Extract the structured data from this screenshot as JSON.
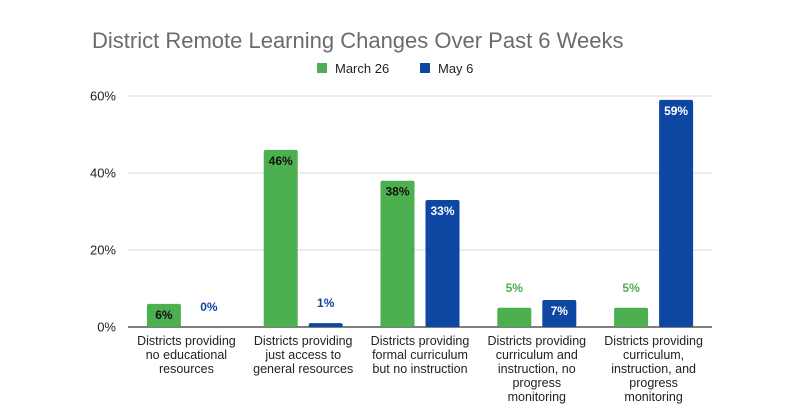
{
  "chart_data": {
    "type": "bar",
    "title": "District Remote Learning Changes Over Past 6 Weeks",
    "xlabel": "",
    "ylabel": "",
    "ylim": [
      0,
      60
    ],
    "yticks": [
      "0%",
      "20%",
      "40%",
      "60%"
    ],
    "ytick_values": [
      0,
      20,
      40,
      60
    ],
    "grid": true,
    "legend_position": "top",
    "categories": [
      [
        "Districts providing",
        "no educational",
        "resources"
      ],
      [
        "Districts providing",
        "just access to",
        "general resources"
      ],
      [
        "Districts providing",
        "formal curriculum",
        "but no instruction"
      ],
      [
        "Districts providing",
        "curriculum and",
        "instruction, no",
        "progress",
        "monitoring"
      ],
      [
        "Districts providing",
        "curriculum,",
        "instruction, and",
        "progress",
        "monitoring"
      ]
    ],
    "series": [
      {
        "name": "March 26",
        "color": "#4caf50",
        "values": [
          6,
          46,
          38,
          5,
          5
        ],
        "labels": [
          "6%",
          "46%",
          "38%",
          "5%",
          "5%"
        ]
      },
      {
        "name": "May 6",
        "color": "#0d47a1",
        "values": [
          0,
          1,
          33,
          7,
          59
        ],
        "labels": [
          "0%",
          "1%",
          "33%",
          "7%",
          "59%"
        ]
      }
    ]
  }
}
